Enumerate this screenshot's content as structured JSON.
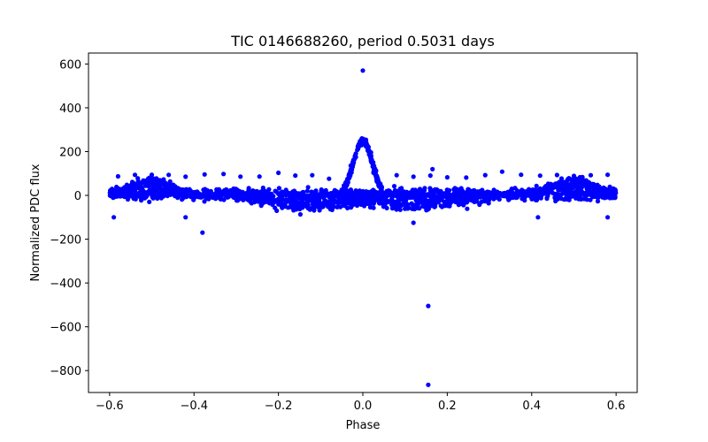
{
  "chart_data": {
    "type": "scatter",
    "title": "TIC 0146688260, period 0.5031 days",
    "xlabel": "Phase",
    "ylabel": "Normalized PDC flux",
    "xlim": [
      -0.65,
      0.65
    ],
    "ylim": [
      -900,
      650
    ],
    "xticks": [
      -0.6,
      -0.4,
      -0.2,
      0.0,
      0.2,
      0.4,
      0.6
    ],
    "xtick_labels": [
      "−0.6",
      "−0.4",
      "−0.2",
      "0.0",
      "0.2",
      "0.4",
      "0.6"
    ],
    "yticks": [
      600,
      400,
      200,
      0,
      -200,
      -400,
      -600,
      -800
    ],
    "ytick_labels": [
      "600",
      "400",
      "200",
      "0",
      "−200",
      "−400",
      "−600",
      "−800"
    ],
    "grid": false,
    "marker_color": "#0000ff",
    "series": [
      {
        "name": "flux",
        "components": {
          "baseline": {
            "x_range": [
              -0.6,
              0.6
            ],
            "y": 5,
            "scatter": 12
          },
          "negative_band": {
            "centers": [
              -0.12,
              0.12
            ],
            "width": 0.1,
            "depth": -45
          },
          "hump": {
            "centers": [
              -0.5,
              0.5
            ],
            "width": 0.05,
            "height": 75
          },
          "primary_peak": {
            "center": 0.0,
            "width": 0.022,
            "height": 250
          },
          "upper_dotted_row": {
            "y": 90,
            "x": [
              -0.58,
              -0.54,
              -0.5,
              -0.46,
              -0.42,
              -0.375,
              -0.33,
              -0.29,
              -0.245,
              -0.2,
              -0.16,
              -0.12,
              -0.08,
              0.08,
              0.12,
              0.16,
              0.2,
              0.245,
              0.29,
              0.33,
              0.375,
              0.42,
              0.46,
              0.5,
              0.54,
              0.58
            ]
          }
        },
        "outliers": [
          {
            "x": 0.0,
            "y": 570
          },
          {
            "x": 0.155,
            "y": -505
          },
          {
            "x": 0.155,
            "y": -865
          },
          {
            "x": -0.38,
            "y": -170
          },
          {
            "x": -0.59,
            "y": -100
          },
          {
            "x": 0.415,
            "y": -100
          },
          {
            "x": 0.58,
            "y": -100
          },
          {
            "x": -0.42,
            "y": -100
          },
          {
            "x": 0.165,
            "y": 120
          },
          {
            "x": 0.12,
            "y": -125
          }
        ]
      }
    ]
  }
}
